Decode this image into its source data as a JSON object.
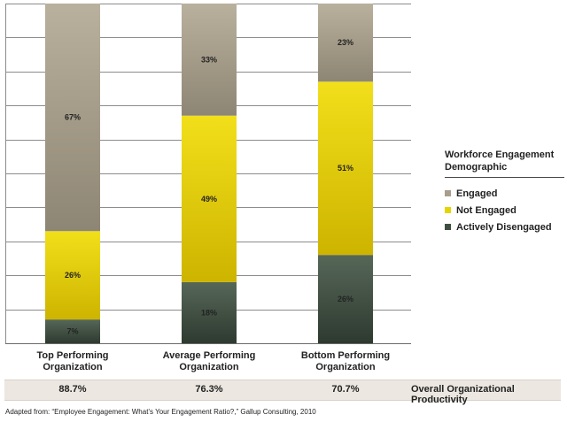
{
  "chart_data": {
    "type": "stacked-bar",
    "categories": [
      "Top Performing Organization",
      "Average Performing Organization",
      "Bottom Performing Organization"
    ],
    "category_lines": [
      [
        "Top Performing",
        "Organization"
      ],
      [
        "Average Performing",
        "Organization"
      ],
      [
        "Bottom Performing",
        "Organization"
      ]
    ],
    "series": [
      {
        "name": "Actively Disengaged",
        "values": [
          7,
          18,
          26
        ],
        "labels": [
          "7%",
          "18%",
          "26%"
        ],
        "color": "#3e4f42"
      },
      {
        "name": "Not Engaged",
        "values": [
          26,
          49,
          51
        ],
        "labels": [
          "26%",
          "49%",
          "51%"
        ],
        "color": "#e6d400"
      },
      {
        "name": "Engaged",
        "values": [
          67,
          33,
          23
        ],
        "labels": [
          "67%",
          "33%",
          "23%"
        ],
        "color": "#a79e8c"
      }
    ],
    "ylim": [
      0,
      100
    ],
    "grid": true,
    "legend": {
      "title": "Workforce Engagement Demographic",
      "items": [
        "Engaged",
        "Not Engaged",
        "Actively Disengaged"
      ],
      "placement": "right"
    }
  },
  "productivity": {
    "values": [
      "88.7%",
      "76.3%",
      "70.7%"
    ],
    "label": "Overall Organizational Productivity"
  },
  "source": "Adapted from: “Employee Engagement: What’s Your Engagement Ratio?,” Gallup Consulting, 2010"
}
